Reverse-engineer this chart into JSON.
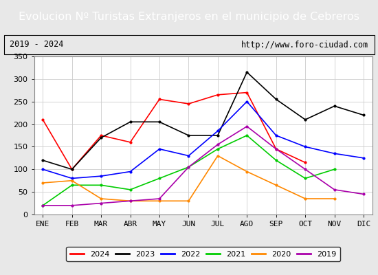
{
  "title": "Evolucion Nº Turistas Extranjeros en el municipio de Cebreros",
  "subtitle_left": "2019 - 2024",
  "subtitle_right": "http://www.foro-ciudad.com",
  "months": [
    "ENE",
    "FEB",
    "MAR",
    "ABR",
    "MAY",
    "JUN",
    "JUL",
    "AGO",
    "SEP",
    "OCT",
    "NOV",
    "DIC"
  ],
  "ylim": [
    0,
    350
  ],
  "yticks": [
    0,
    50,
    100,
    150,
    200,
    250,
    300,
    350
  ],
  "series": {
    "2024": {
      "color": "#ff0000",
      "values": [
        210,
        100,
        175,
        160,
        255,
        245,
        265,
        270,
        145,
        115,
        null,
        null
      ]
    },
    "2023": {
      "color": "#000000",
      "values": [
        120,
        100,
        170,
        205,
        205,
        175,
        175,
        315,
        255,
        210,
        240,
        220
      ]
    },
    "2022": {
      "color": "#0000ff",
      "values": [
        100,
        80,
        85,
        95,
        145,
        130,
        185,
        250,
        175,
        150,
        135,
        125
      ]
    },
    "2021": {
      "color": "#00cc00",
      "values": [
        20,
        65,
        65,
        55,
        80,
        105,
        145,
        175,
        120,
        80,
        100,
        null
      ]
    },
    "2020": {
      "color": "#ff8800",
      "values": [
        70,
        75,
        35,
        30,
        30,
        30,
        130,
        95,
        65,
        35,
        35,
        null
      ]
    },
    "2019": {
      "color": "#aa00aa",
      "values": [
        20,
        20,
        25,
        30,
        35,
        105,
        155,
        195,
        145,
        100,
        55,
        45
      ]
    }
  },
  "legend_order": [
    "2024",
    "2023",
    "2022",
    "2021",
    "2020",
    "2019"
  ],
  "title_bg_color": "#5b82c0",
  "title_text_color": "#ffffff",
  "title_fontsize": 11.5,
  "subtitle_fontsize": 8.5,
  "tick_fontsize": 8,
  "fig_bg_color": "#e8e8e8",
  "plot_bg_color": "#ffffff"
}
